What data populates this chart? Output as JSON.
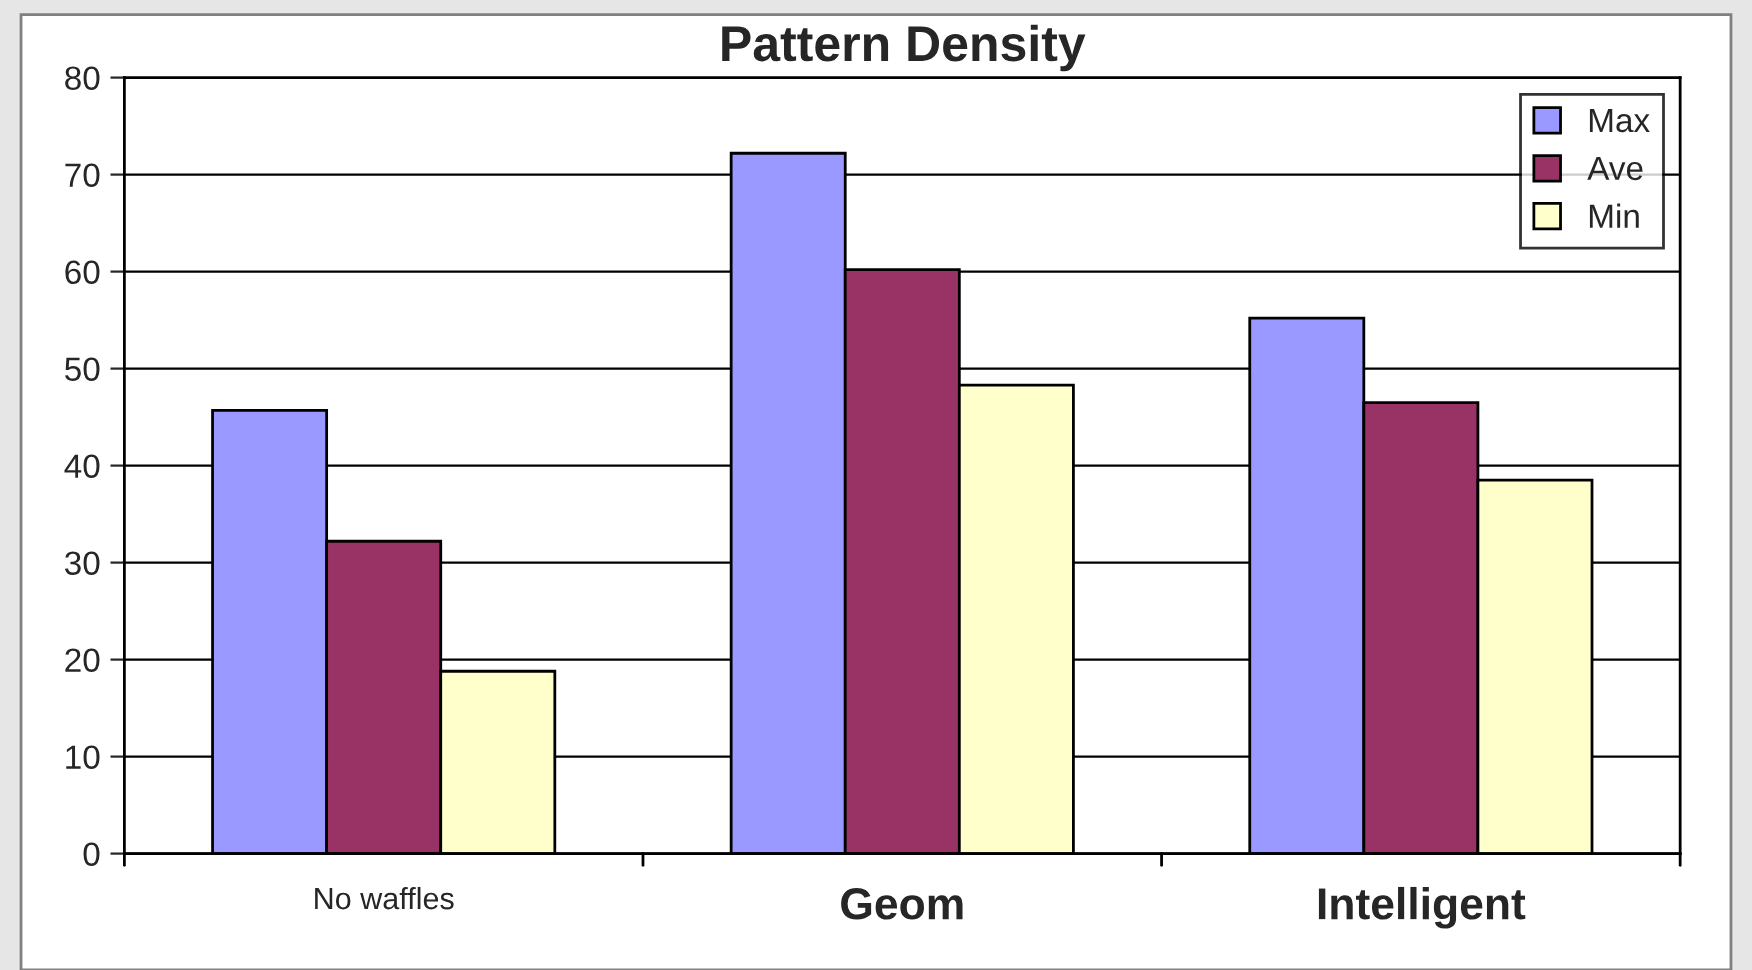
{
  "chart_data": {
    "type": "bar",
    "title": "Pattern Density",
    "categories": [
      "No waffles",
      "Geom",
      "Intelligent"
    ],
    "series": [
      {
        "name": "Max",
        "color": "#9999ff",
        "values": [
          45.7,
          72.2,
          55.2
        ]
      },
      {
        "name": "Ave",
        "color": "#993366",
        "values": [
          32.2,
          60.2,
          46.5
        ]
      },
      {
        "name": "Min",
        "color": "#ffffcc",
        "values": [
          18.8,
          48.3,
          38.5
        ]
      }
    ],
    "ylim": [
      0,
      80
    ],
    "yticks": [
      0,
      10,
      20,
      30,
      40,
      50,
      60,
      70,
      80
    ],
    "grid": "y",
    "legend": "top right"
  }
}
